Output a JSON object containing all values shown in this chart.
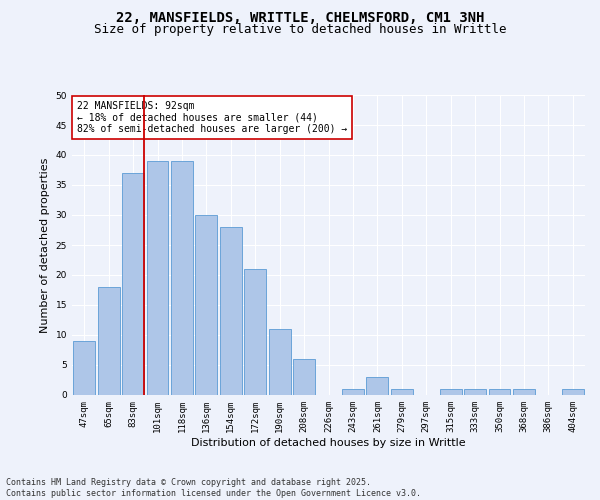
{
  "title1": "22, MANSFIELDS, WRITTLE, CHELMSFORD, CM1 3NH",
  "title2": "Size of property relative to detached houses in Writtle",
  "xlabel": "Distribution of detached houses by size in Writtle",
  "ylabel": "Number of detached properties",
  "categories": [
    "47sqm",
    "65sqm",
    "83sqm",
    "101sqm",
    "118sqm",
    "136sqm",
    "154sqm",
    "172sqm",
    "190sqm",
    "208sqm",
    "226sqm",
    "243sqm",
    "261sqm",
    "279sqm",
    "297sqm",
    "315sqm",
    "333sqm",
    "350sqm",
    "368sqm",
    "386sqm",
    "404sqm"
  ],
  "values": [
    9,
    18,
    37,
    39,
    39,
    30,
    28,
    21,
    11,
    6,
    0,
    1,
    3,
    1,
    0,
    1,
    1,
    1,
    1,
    0,
    1
  ],
  "bar_color": "#aec6e8",
  "bar_edge_color": "#5b9bd5",
  "vline_color": "#cc0000",
  "annotation_text": "22 MANSFIELDS: 92sqm\n← 18% of detached houses are smaller (44)\n82% of semi-detached houses are larger (200) →",
  "annotation_box_color": "#ffffff",
  "annotation_box_edge": "#cc0000",
  "bg_color": "#eef2fb",
  "grid_color": "#ffffff",
  "ylim": [
    0,
    50
  ],
  "yticks": [
    0,
    5,
    10,
    15,
    20,
    25,
    30,
    35,
    40,
    45,
    50
  ],
  "footer": "Contains HM Land Registry data © Crown copyright and database right 2025.\nContains public sector information licensed under the Open Government Licence v3.0.",
  "title_fontsize": 10,
  "subtitle_fontsize": 9,
  "axis_label_fontsize": 8,
  "tick_fontsize": 6.5,
  "annotation_fontsize": 7,
  "footer_fontsize": 6
}
